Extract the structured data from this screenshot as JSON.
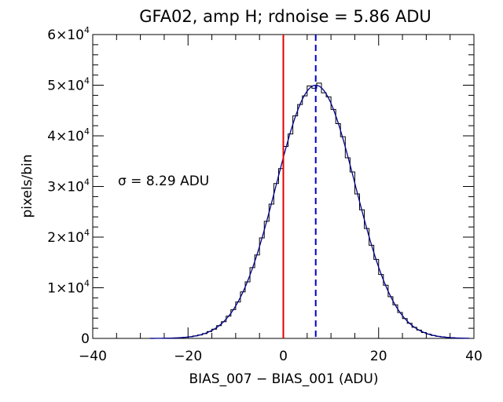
{
  "chart_data": {
    "type": "histogram",
    "title": "GFA02, amp H; rdnoise = 5.86 ADU",
    "xlabel": "BIAS_007 − BIAS_001 (ADU)",
    "ylabel": "pixels/bin",
    "annotation": "σ = 8.29 ADU",
    "xlim": [
      -40,
      40
    ],
    "ylim": [
      0,
      60000
    ],
    "xticks": [
      -40,
      -20,
      0,
      20,
      40
    ],
    "xtick_labels": [
      "−40",
      "−20",
      "0",
      "20",
      "40"
    ],
    "yticks": [
      0,
      10000,
      20000,
      30000,
      40000,
      50000,
      60000
    ],
    "ytick_labels": [
      {
        "mantissa": "0",
        "exponent": ""
      },
      {
        "mantissa": "1×10",
        "exponent": "4"
      },
      {
        "mantissa": "2×10",
        "exponent": "4"
      },
      {
        "mantissa": "3×10",
        "exponent": "4"
      },
      {
        "mantissa": "4×10",
        "exponent": "4"
      },
      {
        "mantissa": "5×10",
        "exponent": "4"
      },
      {
        "mantissa": "6×10",
        "exponent": "4"
      }
    ],
    "x_minor_step": 5,
    "y_minor_step": 2000,
    "grid": false,
    "histogram": {
      "bin_width": 1,
      "x_start": -25,
      "x_end": 38,
      "color": "#000000"
    },
    "gaussian_fit": {
      "amplitude": 50000,
      "mean": 6.8,
      "sigma": 8.29,
      "color": "#00008b"
    },
    "vlines": [
      {
        "x": 0,
        "color": "#e00000",
        "style": "solid"
      },
      {
        "x": 6.8,
        "color": "#0000cc",
        "style": "dashed"
      }
    ]
  }
}
